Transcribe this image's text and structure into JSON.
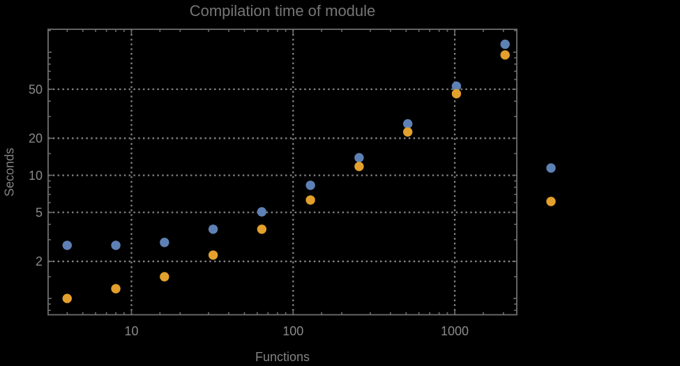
{
  "figure": {
    "background": "#000000"
  },
  "chart_data": {
    "type": "scatter",
    "title": "Compilation time of module",
    "xlabel": "Functions",
    "ylabel": "Seconds",
    "axes": {
      "x_scale": "log",
      "y_scale": "log",
      "xlim": [
        3.05,
        2420
      ],
      "ylim": [
        0.737,
        153.5
      ],
      "x_ticks": {
        "major": [
          {
            "value": 10,
            "label": "10"
          },
          {
            "value": 100,
            "label": "100"
          },
          {
            "value": 1000,
            "label": "1000"
          }
        ],
        "minor": [
          4,
          5,
          6,
          7,
          8,
          9,
          15,
          20,
          30,
          40,
          50,
          60,
          70,
          80,
          90,
          150,
          200,
          300,
          400,
          500,
          600,
          700,
          800,
          900,
          1500,
          2000
        ]
      },
      "y_ticks": {
        "major": [
          {
            "value": 2,
            "label": "2"
          },
          {
            "value": 5,
            "label": "5"
          },
          {
            "value": 10,
            "label": "10"
          },
          {
            "value": 20,
            "label": "20"
          },
          {
            "value": 50,
            "label": "50"
          }
        ],
        "unlabeled_major": [
          1,
          100
        ],
        "minor": [
          0.8,
          0.9,
          1.5,
          3,
          4,
          6,
          7,
          8,
          9,
          15,
          30,
          40,
          60,
          70,
          80,
          90,
          150
        ]
      },
      "grid": {
        "x_at": [
          10,
          100,
          1000
        ],
        "y_at": [
          2,
          5,
          10,
          20,
          50
        ],
        "style": "dotted"
      }
    },
    "x": [
      4,
      8,
      16,
      32,
      64,
      128,
      256,
      512,
      1024,
      2048
    ],
    "series": [
      {
        "name": "series-1",
        "marker": "disk",
        "color": "#5E81B5",
        "values": [
          2.7,
          2.7,
          2.85,
          3.65,
          5.05,
          8.3,
          13.9,
          26.2,
          53,
          116
        ]
      },
      {
        "name": "series-2",
        "marker": "disk",
        "color": "#E3A02C",
        "values": [
          1.0,
          1.2,
          1.5,
          2.25,
          3.65,
          6.3,
          11.8,
          22.5,
          46,
          95
        ]
      }
    ],
    "legend": {
      "position": "right-center",
      "labels_visible": false,
      "entries": [
        {
          "series": "series-1",
          "color": "#5E81B5"
        },
        {
          "series": "series-2",
          "color": "#E3A02C"
        }
      ]
    },
    "style": {
      "frame_color": "#6F6F6F",
      "grid_color": "#848484",
      "tick_label_color": "#8A8A8A",
      "title_color": "#767676",
      "axis_label_color": "#828282",
      "background": "#000000"
    }
  }
}
